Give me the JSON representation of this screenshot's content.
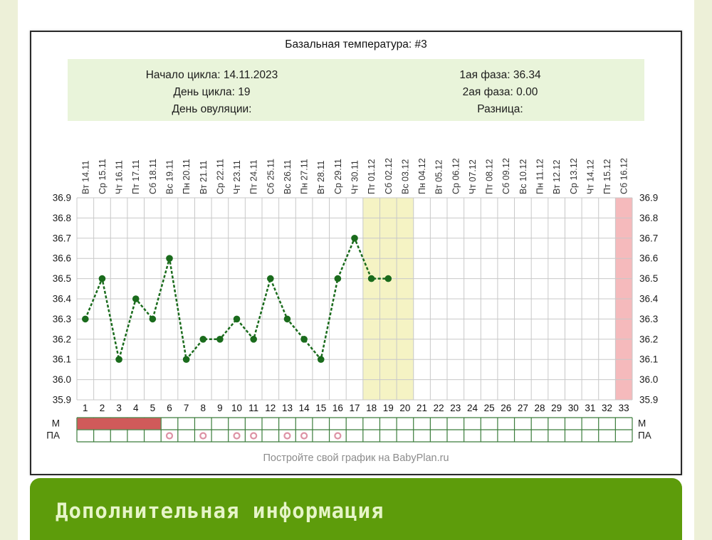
{
  "header": {
    "title": "Базальная температура: #3",
    "info_left": [
      "Начало цикла: 14.11.2023",
      "День цикла: 19",
      "День овуляции:"
    ],
    "info_right": [
      "1ая фаза: 36.34",
      "2ая фаза: 0.00",
      "Разница:"
    ]
  },
  "footer": {
    "credit": "Постройте свой график на BabyPlan.ru"
  },
  "banner": {
    "label": "Дополнительная информация",
    "bg_color": "#5d9c0b",
    "text_color": "#e6f5c8"
  },
  "chart_data": {
    "type": "line",
    "title": "Базальная температура: #3",
    "xlabel": "",
    "ylabel": "",
    "ylim": [
      35.9,
      36.9
    ],
    "ytick_labels": [
      "36.9",
      "36.8",
      "36.7",
      "36.6",
      "36.5",
      "36.4",
      "36.3",
      "36.2",
      "36.1",
      "36.0",
      "35.9"
    ],
    "x_day_numbers": [
      1,
      2,
      3,
      4,
      5,
      6,
      7,
      8,
      9,
      10,
      11,
      12,
      13,
      14,
      15,
      16,
      17,
      18,
      19,
      20,
      21,
      22,
      23,
      24,
      25,
      26,
      27,
      28,
      29,
      30,
      31,
      32,
      33
    ],
    "date_labels": [
      "Вт 14.11",
      "Ср 15.11",
      "Чт 16.11",
      "Пт 17.11",
      "Сб 18.11",
      "Вс 19.11",
      "Пн 20.11",
      "Вт 21.11",
      "Ср 22.11",
      "Чт 23.11",
      "Пт 24.11",
      "Сб 25.11",
      "Вс 26.11",
      "Пн 27.11",
      "Вт 28.11",
      "Ср 29.11",
      "Чт 30.11",
      "Пт 01.12",
      "Сб 02.12",
      "Вс 03.12",
      "Пн 04.12",
      "Вт 05.12",
      "Ср 06.12",
      "Чт 07.12",
      "Пт 08.12",
      "Сб 09.12",
      "Вс 10.12",
      "Пн 11.12",
      "Вт 12.12",
      "Ср 13.12",
      "Чт 14.12",
      "Пт 15.12",
      "Сб 16.12"
    ],
    "series": [
      {
        "name": "Базальная температура",
        "color": "#1a6b1c",
        "values": [
          36.3,
          36.5,
          36.1,
          36.4,
          36.3,
          36.6,
          36.1,
          36.2,
          36.2,
          36.3,
          36.2,
          36.5,
          36.3,
          36.2,
          36.1,
          36.5,
          36.7,
          36.5,
          36.5
        ]
      }
    ],
    "grid": true,
    "grid_color": "#c8c8c8",
    "bands": [
      {
        "name": "highlight-band-yellow",
        "start_day": 18,
        "end_day": 20,
        "color": "#f5f3c4"
      },
      {
        "name": "highlight-band-pink",
        "start_day": 33,
        "end_day": 33,
        "color": "#f5babc"
      }
    ],
    "marker_rows": {
      "m_label": "М",
      "pa_label": "ПА",
      "border_color": "#3a7c3a",
      "menstruation_days": [
        1,
        2,
        3,
        4,
        5
      ],
      "menstruation_color": "#d05a5a",
      "pa_days": [
        6,
        8,
        10,
        11,
        13,
        14,
        16
      ],
      "pa_mark_color": "#dd93a5"
    }
  }
}
